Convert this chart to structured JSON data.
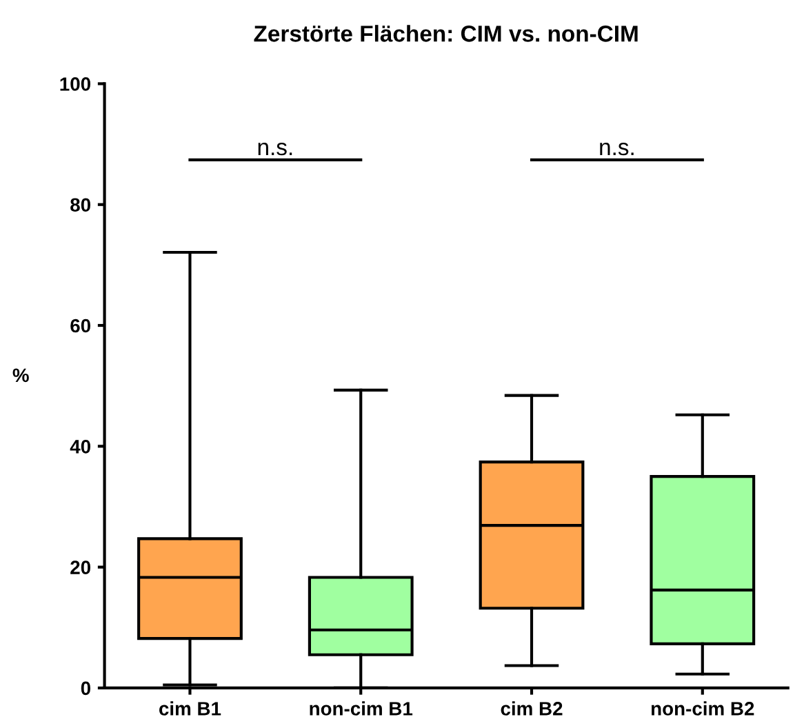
{
  "chart_data": {
    "type": "box",
    "title": "Zerstörte Flächen: CIM vs. non-CIM",
    "ylabel": "%",
    "categories": [
      "cim B1",
      "non-cim B1",
      "cim B2",
      "non-cim B2"
    ],
    "colors": [
      "#ffa54f",
      "#a0ffa0",
      "#ffa54f",
      "#a0ffa0"
    ],
    "boxes": [
      {
        "low": 0.5,
        "q1": 8.2,
        "median": 18.3,
        "q3": 24.7,
        "high": 72.1
      },
      {
        "low": 0,
        "q1": 5.5,
        "median": 9.6,
        "q3": 18.3,
        "high": 49.3
      },
      {
        "low": 3.7,
        "q1": 13.2,
        "median": 26.9,
        "q3": 37.4,
        "high": 48.4
      },
      {
        "low": 2.3,
        "q1": 7.3,
        "median": 16.2,
        "q3": 35.0,
        "high": 45.2
      }
    ],
    "ylim": [
      0,
      100
    ],
    "yticks": [
      0,
      20,
      40,
      60,
      80,
      100
    ],
    "grid": false,
    "legend": false,
    "annotations": [
      "n.s.",
      "n.s."
    ]
  }
}
